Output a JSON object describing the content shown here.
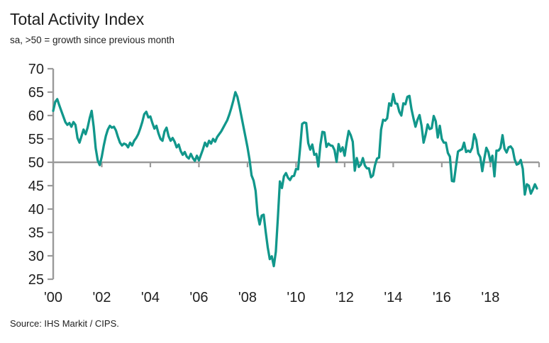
{
  "header": {
    "title": "Total Activity Index",
    "subtitle": "sa, >50 = growth since previous month"
  },
  "footer": {
    "source": "Source: IHS Markit / CIPS."
  },
  "colors": {
    "line": "#11978b",
    "axis": "#9a9a9a",
    "text": "#1e1e1e",
    "background": "#ffffff"
  },
  "chart_data": {
    "type": "line",
    "title": "Total Activity Index",
    "subtitle": "sa, >50 = growth since previous month",
    "series_name": "Total Activity Index",
    "frequency": "monthly",
    "x_start": "2000-01",
    "x_end": "2019-12",
    "xlabel": "",
    "ylabel": "",
    "ylim": [
      25,
      70
    ],
    "y_ticks": [
      70,
      65,
      60,
      55,
      50,
      45,
      40,
      35,
      30,
      25
    ],
    "x_tick_labels": [
      "'00",
      "'02",
      "'04",
      "'06",
      "'08",
      "'10",
      "'12",
      "'14",
      "'16",
      "'18"
    ],
    "x_tick_month_index": [
      0,
      24,
      48,
      72,
      96,
      120,
      144,
      168,
      192,
      216
    ],
    "baseline": 50,
    "grid": false,
    "legend": false,
    "values": [
      61.0,
      62.9,
      63.5,
      62.2,
      61.0,
      59.8,
      58.6,
      58.0,
      58.4,
      57.6,
      58.6,
      58.0,
      55.2,
      54.2,
      55.6,
      57.0,
      56.0,
      57.4,
      59.4,
      61.0,
      57.6,
      53.0,
      50.4,
      49.4,
      51.2,
      53.6,
      55.6,
      57.0,
      57.8,
      57.4,
      57.6,
      56.8,
      55.4,
      54.2,
      53.6,
      54.0,
      53.8,
      53.2,
      54.2,
      53.6,
      54.6,
      55.2,
      56.0,
      57.2,
      58.6,
      60.3,
      60.8,
      59.6,
      59.8,
      58.4,
      57.2,
      57.8,
      56.2,
      55.0,
      54.6,
      56.6,
      57.4,
      55.6,
      54.6,
      55.2,
      54.4,
      53.2,
      53.8,
      52.4,
      51.6,
      52.2,
      51.2,
      50.8,
      51.8,
      50.9,
      50.3,
      51.4,
      50.4,
      51.6,
      52.8,
      54.2,
      53.4,
      54.6,
      54.0,
      55.0,
      54.4,
      55.4,
      56.0,
      56.6,
      57.4,
      58.2,
      59.0,
      60.2,
      61.6,
      63.2,
      65.0,
      64.0,
      62.0,
      59.8,
      57.6,
      55.4,
      53.2,
      50.6,
      47.2,
      46.1,
      43.9,
      38.8,
      36.7,
      38.6,
      38.8,
      35.1,
      31.8,
      29.3,
      29.9,
      27.8,
      30.9,
      38.1,
      45.9,
      44.5,
      47.0,
      47.7,
      46.7,
      46.2,
      47.0,
      47.1,
      48.6,
      48.5,
      53.1,
      58.2,
      58.5,
      58.4,
      54.1,
      52.7,
      53.8,
      51.6,
      51.8,
      49.1,
      53.7,
      56.5,
      56.4,
      53.3,
      54.0,
      53.6,
      53.5,
      52.6,
      50.1,
      53.9,
      52.3,
      53.2,
      51.4,
      54.3,
      56.7,
      55.8,
      54.4,
      48.2,
      50.9,
      49.0,
      49.5,
      50.9,
      49.3,
      48.7,
      48.7,
      46.8,
      47.2,
      49.4,
      50.8,
      51.0,
      57.0,
      59.1,
      58.9,
      59.4,
      62.6,
      62.1,
      64.6,
      62.6,
      62.5,
      60.8,
      60.0,
      62.6,
      62.4,
      64.0,
      64.2,
      61.4,
      59.4,
      57.6,
      59.1,
      60.1,
      57.8,
      54.2,
      55.9,
      58.1,
      57.1,
      57.3,
      59.9,
      58.8,
      55.3,
      57.8,
      55.0,
      54.2,
      54.2,
      52.0,
      51.2,
      46.0,
      45.9,
      49.2,
      52.3,
      52.6,
      52.8,
      54.2,
      52.2,
      52.5,
      52.2,
      53.1,
      56.0,
      54.8,
      51.9,
      51.1,
      48.1,
      50.8,
      53.1,
      52.2,
      50.2,
      51.4,
      47.0,
      52.5,
      52.5,
      53.1,
      55.8,
      52.9,
      52.1,
      53.2,
      53.4,
      52.8,
      50.6,
      49.5,
      49.7,
      50.5,
      48.6,
      43.1,
      45.3,
      45.0,
      43.3,
      44.2,
      45.3,
      44.4
    ]
  }
}
